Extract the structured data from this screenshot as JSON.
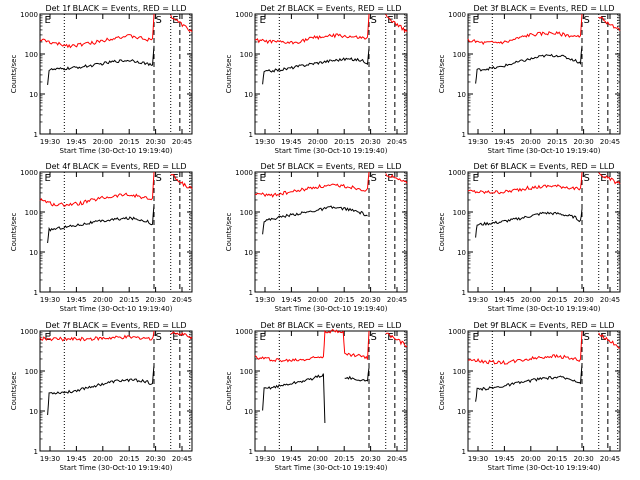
{
  "chart_data": [
    {
      "type": "line",
      "title": "Det 1f BLACK = Events, RED = LLD",
      "xlabel": "Start Time (30-Oct-10 19:19:40)",
      "ylabel": "Counts/sec",
      "yscale": "log",
      "ylim": [
        1,
        1000
      ],
      "xticks": [
        "19:30",
        "19:45",
        "20:00",
        "20:15",
        "20:30",
        "20:45"
      ],
      "yticks": [
        "1",
        "10",
        "100",
        "1000"
      ],
      "markers": [
        "E",
        "S",
        "E"
      ],
      "series": [
        {
          "name": "RED",
          "color": "#ff0000",
          "points": [
            [
              0,
              230
            ],
            [
              0.1,
              180
            ],
            [
              0.2,
              160
            ],
            [
              0.35,
              190
            ],
            [
              0.5,
              260
            ],
            [
              0.6,
              280
            ],
            [
              0.7,
              230
            ],
            [
              0.74,
              220
            ],
            [
              0.75,
              1000
            ]
          ],
          "points2": [
            [
              0.86,
              900
            ],
            [
              0.92,
              600
            ],
            [
              1,
              360
            ]
          ]
        },
        {
          "name": "BLACK",
          "color": "#000000",
          "points": [
            [
              0.05,
              18
            ],
            [
              0.06,
              40
            ],
            [
              0.2,
              44
            ],
            [
              0.35,
              52
            ],
            [
              0.5,
              66
            ],
            [
              0.6,
              70
            ],
            [
              0.7,
              58
            ],
            [
              0.74,
              50
            ],
            [
              0.75,
              160
            ]
          ]
        }
      ]
    },
    {
      "type": "line",
      "title": "Det 2f BLACK = Events, RED = LLD",
      "xlabel": "Start Time (30-Oct-10 19:19:40)",
      "ylabel": "Counts/sec",
      "yscale": "log",
      "ylim": [
        1,
        1000
      ],
      "xticks": [
        "19:30",
        "19:45",
        "20:00",
        "20:15",
        "20:30",
        "20:45"
      ],
      "yticks": [
        "1",
        "10",
        "100",
        "1000"
      ],
      "markers": [
        "E",
        "S",
        "E"
      ],
      "series": [
        {
          "name": "RED",
          "color": "#ff0000",
          "points": [
            [
              0,
              220
            ],
            [
              0.1,
              200
            ],
            [
              0.25,
              190
            ],
            [
              0.4,
              260
            ],
            [
              0.55,
              290
            ],
            [
              0.65,
              260
            ],
            [
              0.74,
              240
            ],
            [
              0.75,
              1000
            ]
          ],
          "points2": [
            [
              0.86,
              900
            ],
            [
              0.92,
              600
            ],
            [
              1,
              360
            ]
          ]
        },
        {
          "name": "BLACK",
          "color": "#000000",
          "points": [
            [
              0.05,
              18
            ],
            [
              0.06,
              36
            ],
            [
              0.2,
              42
            ],
            [
              0.35,
              55
            ],
            [
              0.5,
              68
            ],
            [
              0.6,
              75
            ],
            [
              0.7,
              70
            ],
            [
              0.74,
              60
            ],
            [
              0.75,
              140
            ]
          ]
        }
      ]
    },
    {
      "type": "line",
      "title": "Det 3f BLACK = Events, RED = LLD",
      "xlabel": "Start Time (30-Oct-10 19:19:40)",
      "ylabel": "Counts/sec",
      "yscale": "log",
      "ylim": [
        1,
        1000
      ],
      "xticks": [
        "19:30",
        "19:45",
        "20:00",
        "20:15",
        "20:30",
        "20:45"
      ],
      "yticks": [
        "1",
        "10",
        "100",
        "1000"
      ],
      "markers": [
        "E",
        "S",
        "E"
      ],
      "series": [
        {
          "name": "RED",
          "color": "#ff0000",
          "points": [
            [
              0,
              220
            ],
            [
              0.1,
              190
            ],
            [
              0.25,
              200
            ],
            [
              0.4,
              300
            ],
            [
              0.55,
              340
            ],
            [
              0.65,
              300
            ],
            [
              0.74,
              260
            ],
            [
              0.75,
              1000
            ]
          ],
          "points2": [
            [
              0.86,
              900
            ],
            [
              0.92,
              600
            ],
            [
              1,
              380
            ]
          ]
        },
        {
          "name": "BLACK",
          "color": "#000000",
          "points": [
            [
              0.05,
              18
            ],
            [
              0.06,
              40
            ],
            [
              0.2,
              46
            ],
            [
              0.35,
              66
            ],
            [
              0.5,
              90
            ],
            [
              0.6,
              92
            ],
            [
              0.7,
              70
            ],
            [
              0.74,
              60
            ],
            [
              0.75,
              160
            ]
          ]
        }
      ]
    },
    {
      "type": "line",
      "title": "Det 4f BLACK = Events, RED = LLD",
      "xlabel": "Start Time (30-Oct-10 19:19:40)",
      "ylabel": "Counts/sec",
      "yscale": "log",
      "ylim": [
        1,
        1000
      ],
      "xticks": [
        "19:30",
        "19:45",
        "20:00",
        "20:15",
        "20:30",
        "20:45"
      ],
      "yticks": [
        "1",
        "10",
        "100",
        "1000"
      ],
      "markers": [
        "E",
        "S",
        "E"
      ],
      "series": [
        {
          "name": "RED",
          "color": "#ff0000",
          "points": [
            [
              0,
              210
            ],
            [
              0.1,
              150
            ],
            [
              0.25,
              160
            ],
            [
              0.4,
              220
            ],
            [
              0.55,
              270
            ],
            [
              0.65,
              250
            ],
            [
              0.74,
              200
            ],
            [
              0.75,
              1000
            ]
          ],
          "points2": [
            [
              0.86,
              900
            ],
            [
              0.92,
              550
            ],
            [
              1,
              380
            ]
          ]
        },
        {
          "name": "BLACK",
          "color": "#000000",
          "points": [
            [
              0.05,
              16
            ],
            [
              0.06,
              36
            ],
            [
              0.2,
              44
            ],
            [
              0.35,
              55
            ],
            [
              0.5,
              66
            ],
            [
              0.6,
              70
            ],
            [
              0.7,
              60
            ],
            [
              0.74,
              50
            ],
            [
              0.75,
              150
            ]
          ]
        }
      ]
    },
    {
      "type": "line",
      "title": "Det 5f BLACK = Events, RED = LLD",
      "xlabel": "Start Time (30-Oct-10 19:19:40)",
      "ylabel": "Counts/sec",
      "yscale": "log",
      "ylim": [
        1,
        1000
      ],
      "xticks": [
        "19:30",
        "19:45",
        "20:00",
        "20:15",
        "20:30",
        "20:45"
      ],
      "yticks": [
        "1",
        "10",
        "100",
        "1000"
      ],
      "markers": [
        "E",
        "S",
        "E"
      ],
      "series": [
        {
          "name": "RED",
          "color": "#ff0000",
          "points": [
            [
              0,
              290
            ],
            [
              0.1,
              260
            ],
            [
              0.25,
              320
            ],
            [
              0.4,
              420
            ],
            [
              0.55,
              460
            ],
            [
              0.65,
              410
            ],
            [
              0.74,
              350
            ],
            [
              0.75,
              1000
            ]
          ],
          "points2": [
            [
              0.86,
              900
            ],
            [
              0.92,
              700
            ],
            [
              1,
              520
            ]
          ]
        },
        {
          "name": "BLACK",
          "color": "#000000",
          "points": [
            [
              0.05,
              30
            ],
            [
              0.06,
              60
            ],
            [
              0.2,
              80
            ],
            [
              0.35,
              100
            ],
            [
              0.5,
              130
            ],
            [
              0.6,
              120
            ],
            [
              0.7,
              95
            ],
            [
              0.74,
              80
            ]
          ]
        }
      ]
    },
    {
      "type": "line",
      "title": "Det 6f BLACK = Events, RED = LLD",
      "xlabel": "Start Time (30-Oct-10 19:19:40)",
      "ylabel": "Counts/sec",
      "yscale": "log",
      "ylim": [
        1,
        1000
      ],
      "xticks": [
        "19:30",
        "19:45",
        "20:00",
        "20:15",
        "20:30",
        "20:45"
      ],
      "yticks": [
        "1",
        "10",
        "100",
        "1000"
      ],
      "markers": [
        "E",
        "S",
        "E"
      ],
      "series": [
        {
          "name": "RED",
          "color": "#ff0000",
          "points": [
            [
              0,
              330
            ],
            [
              0.1,
              310
            ],
            [
              0.25,
              320
            ],
            [
              0.4,
              400
            ],
            [
              0.55,
              450
            ],
            [
              0.65,
              420
            ],
            [
              0.74,
              360
            ],
            [
              0.75,
              1000
            ]
          ],
          "points2": [
            [
              0.86,
              900
            ],
            [
              0.92,
              700
            ],
            [
              1,
              500
            ]
          ]
        },
        {
          "name": "BLACK",
          "color": "#000000",
          "points": [
            [
              0.05,
              24
            ],
            [
              0.06,
              48
            ],
            [
              0.2,
              55
            ],
            [
              0.35,
              70
            ],
            [
              0.5,
              95
            ],
            [
              0.6,
              90
            ],
            [
              0.7,
              75
            ],
            [
              0.74,
              60
            ],
            [
              0.75,
              120
            ]
          ]
        }
      ]
    },
    {
      "type": "line",
      "title": "Det 7f BLACK = Events, RED = LLD",
      "xlabel": "Start Time (30-Oct-10 19:19:40)",
      "ylabel": "Counts/sec",
      "yscale": "log",
      "ylim": [
        1,
        1000
      ],
      "xticks": [
        "19:30",
        "19:45",
        "20:00",
        "20:15",
        "20:30",
        "20:45"
      ],
      "yticks": [
        "1",
        "10",
        "100",
        "1000"
      ],
      "markers": [
        "E",
        "S",
        "E"
      ],
      "series": [
        {
          "name": "RED",
          "color": "#ff0000",
          "points": [
            [
              0,
              650
            ],
            [
              0.2,
              620
            ],
            [
              0.4,
              650
            ],
            [
              0.55,
              700
            ],
            [
              0.7,
              680
            ],
            [
              0.74,
              600
            ],
            [
              0.75,
              1000
            ]
          ],
          "points2": [
            [
              0.86,
              950
            ],
            [
              0.92,
              850
            ],
            [
              1,
              700
            ]
          ]
        },
        {
          "name": "BLACK",
          "color": "#000000",
          "points": [
            [
              0.05,
              8
            ],
            [
              0.06,
              28
            ],
            [
              0.2,
              30
            ],
            [
              0.35,
              42
            ],
            [
              0.5,
              56
            ],
            [
              0.6,
              60
            ],
            [
              0.7,
              55
            ],
            [
              0.74,
              45
            ],
            [
              0.75,
              140
            ]
          ]
        }
      ]
    },
    {
      "type": "line",
      "title": "Det 8f BLACK = Events, RED = LLD",
      "xlabel": "Start Time (30-Oct-10 19:19:40)",
      "ylabel": "Counts/sec",
      "yscale": "log",
      "ylim": [
        1,
        1000
      ],
      "xticks": [
        "19:30",
        "19:45",
        "20:00",
        "20:15",
        "20:30",
        "20:45"
      ],
      "yticks": [
        "1",
        "10",
        "100",
        "1000"
      ],
      "markers": [
        "E",
        "S",
        "E"
      ],
      "series": [
        {
          "name": "RED",
          "color": "#ff0000",
          "points": [
            [
              0,
              220
            ],
            [
              0.2,
              180
            ],
            [
              0.35,
              200
            ],
            [
              0.45,
              240
            ],
            [
              0.46,
              1000
            ],
            [
              0.58,
              1000
            ],
            [
              0.59,
              260
            ],
            [
              0.7,
              240
            ],
            [
              0.74,
              200
            ],
            [
              0.75,
              1000
            ]
          ],
          "points2": [
            [
              0.86,
              900
            ],
            [
              0.92,
              650
            ],
            [
              1,
              420
            ]
          ]
        },
        {
          "name": "BLACK",
          "color": "#000000",
          "points": [
            [
              0.05,
              10
            ],
            [
              0.06,
              36
            ],
            [
              0.2,
              45
            ],
            [
              0.35,
              60
            ],
            [
              0.45,
              80
            ],
            [
              0.46,
              5
            ]
          ],
          "points3": [
            [
              0.59,
              70
            ],
            [
              0.7,
              60
            ],
            [
              0.74,
              55
            ],
            [
              0.75,
              120
            ]
          ]
        }
      ]
    },
    {
      "type": "line",
      "title": "Det 9f BLACK = Events, RED = LLD",
      "xlabel": "Start Time (30-Oct-10 19:19:40)",
      "ylabel": "Counts/sec",
      "yscale": "log",
      "ylim": [
        1,
        1000
      ],
      "xticks": [
        "19:30",
        "19:45",
        "20:00",
        "20:15",
        "20:30",
        "20:45"
      ],
      "yticks": [
        "1",
        "10",
        "100",
        "1000"
      ],
      "markers": [
        "E",
        "S",
        "E"
      ],
      "series": [
        {
          "name": "RED",
          "color": "#ff0000",
          "points": [
            [
              0,
              200
            ],
            [
              0.1,
              170
            ],
            [
              0.25,
              160
            ],
            [
              0.4,
              200
            ],
            [
              0.55,
              240
            ],
            [
              0.65,
              220
            ],
            [
              0.74,
              180
            ],
            [
              0.75,
              1000
            ]
          ],
          "points2": [
            [
              0.86,
              900
            ],
            [
              0.92,
              600
            ],
            [
              1,
              380
            ]
          ]
        },
        {
          "name": "BLACK",
          "color": "#000000",
          "points": [
            [
              0.05,
              16
            ],
            [
              0.06,
              34
            ],
            [
              0.2,
              40
            ],
            [
              0.35,
              52
            ],
            [
              0.5,
              66
            ],
            [
              0.6,
              70
            ],
            [
              0.7,
              60
            ],
            [
              0.74,
              50
            ],
            [
              0.75,
              150
            ]
          ]
        }
      ]
    }
  ]
}
